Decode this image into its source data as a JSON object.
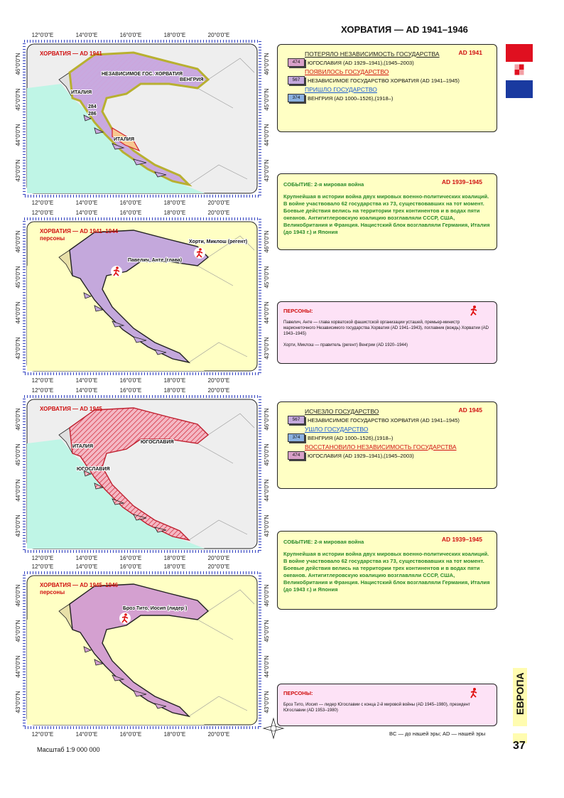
{
  "header": {
    "title": "ХОРВАТИЯ — AD 1941–1946"
  },
  "grid": {
    "lon": [
      "12°0'0\"E",
      "14°0'0\"E",
      "16°0'0\"E",
      "18°0'0\"E",
      "20°0'0\"E"
    ],
    "lat": [
      "46°0'0\"N",
      "45°0'0\"N",
      "44°0'0\"N",
      "43°0'0\"N"
    ]
  },
  "maps": [
    {
      "title": "ХОРВАТИЯ — AD 1941",
      "labels": [
        "НЕЗАВИСИМОЕ ГОС. ХОРВАТИЯ",
        "ВЕНГРИЯ",
        "ИТАЛИЯ",
        "284",
        "286",
        "ИТАЛИЯ"
      ]
    },
    {
      "title": "ХОРВАТИЯ — AD 1941–1944",
      "subtitle": "персоны",
      "labels": [
        "Хорти, Миклош (регент)",
        "Павелич, Анте (глава)"
      ]
    },
    {
      "title": "ХОРВАТИЯ — AD 1945",
      "labels": [
        "ИТАЛИЯ",
        "ЮГОСЛАВИЯ",
        "ЮГОСЛАВИЯ"
      ]
    },
    {
      "title": "ХОРВАТИЯ — AD 1945–1946",
      "subtitle": "персоны",
      "labels": [
        "Броз Тито, Иосип (лидер )"
      ]
    }
  ],
  "panels": [
    {
      "date": "AD 1941",
      "groups": [
        {
          "heading": "ПОТЕРЯЛО НЕЗАВИСИМОСТЬ ГОСУДАРСТВА",
          "color": "#222222",
          "items": [
            {
              "code": "474",
              "color": "#d8a0c8",
              "text": "ЮГОСЛАВИЯ (AD 1929–1941),(1945–2003)"
            }
          ]
        },
        {
          "heading": "ПОЯВИЛОСЬ ГОСУДАРСТВО",
          "color": "#d01010",
          "items": [
            {
              "code": "567",
              "color": "#c4a8dc",
              "text": "НЕЗАВИСИМОЕ ГОСУДАРСТВО ХОРВАТИЯ (AD 1941–1945)"
            }
          ]
        },
        {
          "heading": "ПРИШЛО ГОСУДАРСТВО",
          "color": "#1a5ad0",
          "items": [
            {
              "code": "374",
              "color": "#8ab0e0",
              "text": "ВЕНГРИЯ (AD 1000–1526),(1918–)"
            }
          ]
        }
      ]
    },
    {
      "label": "СОБЫТИЕ: 2-я мировая война",
      "date": "AD 1939–1945",
      "text": "Крупнейшая в истории война двух мировых военно-политических коалиций. В войне участвовало 62 государства из 73, существовавших на тот момент. Боевые действия велись на территории трех континентов и в водах пяти океанов. Антигитлеровскую коалицию возглавляли СССР, США, Великобритания и Франция. Нацистский блок возглавляли Германия, Италия (до 1943 г.) и Япония"
    },
    {
      "label": "ПЕРСОНЫ:",
      "persons": [
        "Павелич, Анте — глава хорватской фашистской организации усташей, премьер-министр марионеточного Независимого государства Хорватия (AD 1941–1943), поглавник (вождь) Хорватии (AD 1943–1945)",
        "Хорти, Миклош — правитель (регент) Венгрии (AD 1920–1944)"
      ]
    },
    {
      "date": "AD 1945",
      "groups": [
        {
          "heading": "ИСЧЕЗЛО ГОСУДАРСТВО",
          "color": "#222222",
          "items": [
            {
              "code": "567",
              "color": "#c4a8dc",
              "text": "НЕЗАВИСИМОЕ ГОСУДАРСТВО ХОРВАТИЯ (AD 1941–1945)"
            }
          ]
        },
        {
          "heading": "УШЛО ГОСУДАРСТВО",
          "color": "#1a5ad0",
          "items": [
            {
              "code": "374",
              "color": "#8ab0e0",
              "text": "ВЕНГРИЯ (AD 1000–1526),(1918–)"
            }
          ]
        },
        {
          "heading": "ВОССТАНОВИЛО НЕЗАВИСИМОСТЬ ГОСУДАРСТВА",
          "color": "#d01010",
          "items": [
            {
              "code": "474",
              "color": "#d8a0c8",
              "text": "ЮГОСЛАВИЯ (AD 1929–1941),(1945–2003)"
            }
          ]
        }
      ]
    },
    {
      "label": "СОБЫТИЕ: 2-я мировая война",
      "date": "AD 1939–1945",
      "text": "Крупнейшая в истории война двух мировых военно-политических коалиций. В войне участвовало 62 государства из 73, существовавших на тот момент. Боевые действия велись на территории трех континентов и в водах пяти океанов. Антигитлеровскую коалицию возглавляли СССР, США, Великобритания и Франция. Нацистский блок возглавляли Германия, Италия (до 1943 г.) и Япония"
    },
    {
      "label": "ПЕРСОНЫ:",
      "persons": [
        "Броз Тито, Иосип — лидер Югославии с конца 2-й мировой войны (AD 1945–1980), президент Югославии (AD 1953–1980)"
      ]
    }
  ],
  "footer": {
    "scale": "Масштаб 1:9 000 000",
    "legend": "BC — до нашей эры; AD — нашей эры",
    "section": "ЕВРОПА",
    "page": "37"
  }
}
